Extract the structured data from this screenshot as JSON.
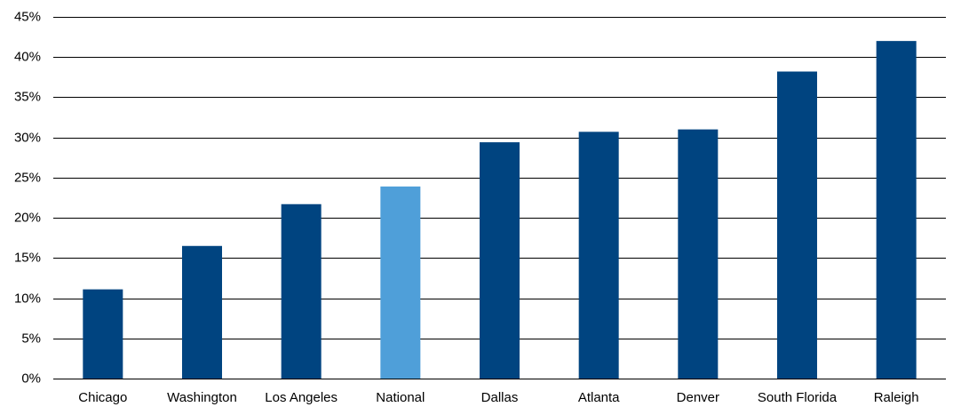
{
  "chart_data": {
    "type": "bar",
    "categories": [
      "Chicago",
      "Washington",
      "Los Angeles",
      "National",
      "Dallas",
      "Atlanta",
      "Denver",
      "South Florida",
      "Raleigh"
    ],
    "values": [
      11.1,
      16.5,
      21.7,
      23.9,
      29.4,
      30.7,
      31.0,
      38.2,
      42.0
    ],
    "colors": [
      "#004480",
      "#004480",
      "#004480",
      "#4f9fd9",
      "#004480",
      "#004480",
      "#004480",
      "#004480",
      "#004480"
    ],
    "ylim": [
      0,
      45
    ],
    "yticks": [
      {
        "value": 0,
        "label": "0%"
      },
      {
        "value": 5,
        "label": "5%"
      },
      {
        "value": 10,
        "label": "10%"
      },
      {
        "value": 15,
        "label": "15%"
      },
      {
        "value": 20,
        "label": "20%"
      },
      {
        "value": 25,
        "label": "25%"
      },
      {
        "value": 30,
        "label": "30%"
      },
      {
        "value": 35,
        "label": "35%"
      },
      {
        "value": 40,
        "label": "40%"
      },
      {
        "value": 45,
        "label": "45%"
      }
    ],
    "grid": true
  }
}
